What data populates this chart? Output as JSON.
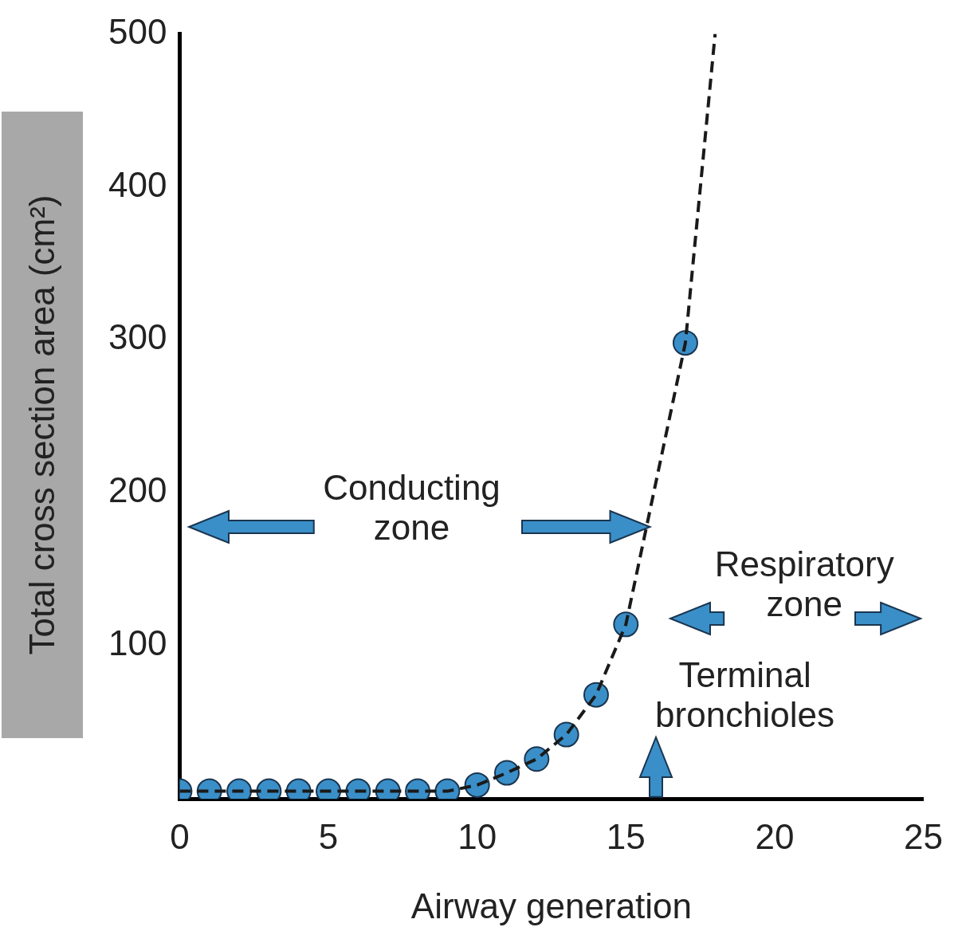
{
  "chart_data": {
    "type": "scatter",
    "xlabel": "Airway generation",
    "ylabel": "Total cross section area (cm²)",
    "xlim": [
      0,
      25
    ],
    "ylim": [
      0,
      500
    ],
    "xticks": [
      0,
      5,
      10,
      15,
      20,
      25
    ],
    "yticks": [
      100,
      200,
      300,
      400,
      500
    ],
    "annotations": [
      "Conducting zone",
      "Respiratory zone",
      "Terminal bronchioles"
    ],
    "series": [
      {
        "type": "line",
        "color": "#1a1a1a",
        "line_style": "dashed",
        "marker": "none",
        "x": [
          0,
          1,
          2,
          3,
          4,
          5,
          6,
          7,
          8,
          9,
          10,
          11,
          12,
          13,
          14,
          15,
          17,
          18
        ],
        "values": [
          5,
          5,
          5,
          5,
          5,
          5,
          5,
          5,
          5,
          5,
          9,
          17,
          26,
          42,
          68,
          114,
          298,
          500
        ]
      },
      {
        "type": "scatter",
        "color": "#3a8fc8",
        "marker": "circle",
        "x": [
          0,
          1,
          2,
          3,
          4,
          5,
          6,
          7,
          8,
          9,
          10,
          11,
          12,
          13,
          14,
          15,
          17
        ],
        "values": [
          5,
          5,
          5,
          5,
          5,
          5,
          5,
          5,
          5,
          5,
          9,
          17,
          26,
          42,
          68,
          114,
          298
        ]
      }
    ]
  }
}
